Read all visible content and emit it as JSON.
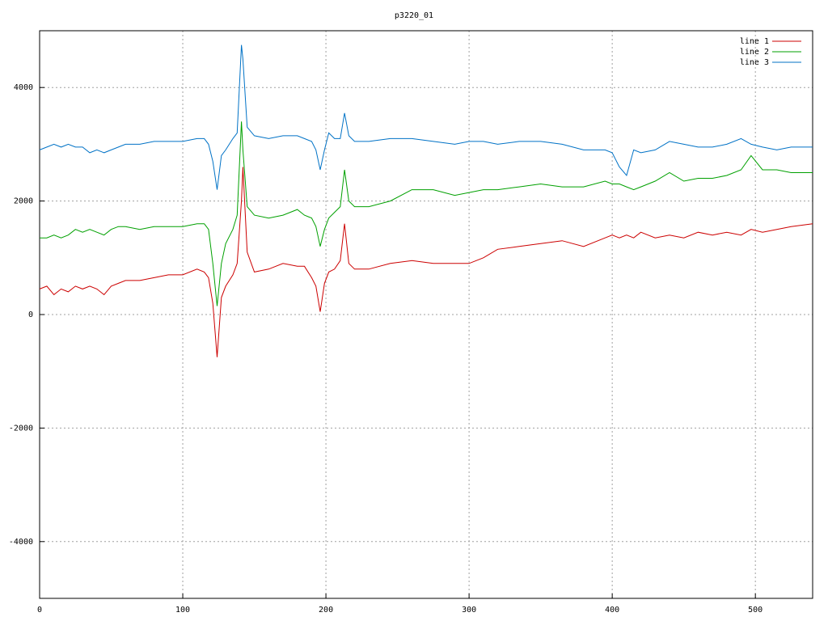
{
  "chart_data": {
    "type": "line",
    "title": "p3220_01",
    "x": [
      0,
      5,
      10,
      15,
      20,
      25,
      30,
      35,
      40,
      45,
      50,
      55,
      60,
      70,
      80,
      90,
      100,
      110,
      115,
      118,
      121,
      124,
      127,
      130,
      135,
      138,
      141,
      142,
      145,
      150,
      160,
      170,
      180,
      185,
      190,
      193,
      196,
      199,
      202,
      206,
      210,
      213,
      216,
      220,
      230,
      245,
      260,
      275,
      290,
      300,
      310,
      320,
      335,
      350,
      365,
      380,
      395,
      400,
      405,
      410,
      415,
      420,
      430,
      440,
      450,
      460,
      470,
      480,
      490,
      497,
      505,
      515,
      525,
      540
    ],
    "series": [
      {
        "name": "line 1",
        "color": "#cc0000",
        "values": [
          450,
          500,
          350,
          450,
          400,
          500,
          450,
          500,
          450,
          350,
          500,
          550,
          600,
          600,
          650,
          700,
          700,
          800,
          750,
          650,
          200,
          -750,
          300,
          500,
          700,
          900,
          2000,
          2600,
          1100,
          750,
          800,
          900,
          850,
          850,
          650,
          500,
          50,
          550,
          750,
          800,
          950,
          1600,
          900,
          800,
          800,
          900,
          950,
          900,
          900,
          900,
          1000,
          1150,
          1200,
          1250,
          1300,
          1200,
          1350,
          1400,
          1350,
          1400,
          1350,
          1450,
          1350,
          1400,
          1350,
          1450,
          1400,
          1450,
          1400,
          1500,
          1450,
          1500,
          1550,
          1600
        ]
      },
      {
        "name": "line 2",
        "color": "#00a000",
        "values": [
          1350,
          1350,
          1400,
          1350,
          1400,
          1500,
          1450,
          1500,
          1450,
          1400,
          1500,
          1550,
          1550,
          1500,
          1550,
          1550,
          1550,
          1600,
          1600,
          1500,
          900,
          150,
          900,
          1250,
          1500,
          1750,
          3400,
          2900,
          1900,
          1750,
          1700,
          1750,
          1850,
          1750,
          1700,
          1550,
          1200,
          1500,
          1700,
          1800,
          1900,
          2550,
          2000,
          1900,
          1900,
          2000,
          2200,
          2200,
          2100,
          2150,
          2200,
          2200,
          2250,
          2300,
          2250,
          2250,
          2350,
          2300,
          2300,
          2250,
          2200,
          2250,
          2350,
          2500,
          2350,
          2400,
          2400,
          2450,
          2550,
          2800,
          2550,
          2550,
          2500,
          2500
        ]
      },
      {
        "name": "line 3",
        "color": "#0072c6",
        "values": [
          2900,
          2950,
          3000,
          2950,
          3000,
          2950,
          2950,
          2850,
          2900,
          2850,
          2900,
          2950,
          3000,
          3000,
          3050,
          3050,
          3050,
          3100,
          3100,
          3000,
          2700,
          2200,
          2800,
          2900,
          3100,
          3200,
          4750,
          4500,
          3300,
          3150,
          3100,
          3150,
          3150,
          3100,
          3050,
          2900,
          2550,
          2900,
          3200,
          3100,
          3100,
          3550,
          3150,
          3050,
          3050,
          3100,
          3100,
          3050,
          3000,
          3050,
          3050,
          3000,
          3050,
          3050,
          3000,
          2900,
          2900,
          2850,
          2600,
          2450,
          2900,
          2850,
          2900,
          3050,
          3000,
          2950,
          2950,
          3000,
          3100,
          3000,
          2950,
          2900,
          2950,
          2950
        ]
      }
    ],
    "xlim": [
      0,
      540
    ],
    "ylim": [
      -5000,
      5000
    ],
    "xticks": [
      0,
      100,
      200,
      300,
      400,
      500
    ],
    "yticks": [
      -4000,
      -2000,
      0,
      2000,
      4000
    ],
    "grid": true,
    "legend": "top-right"
  }
}
